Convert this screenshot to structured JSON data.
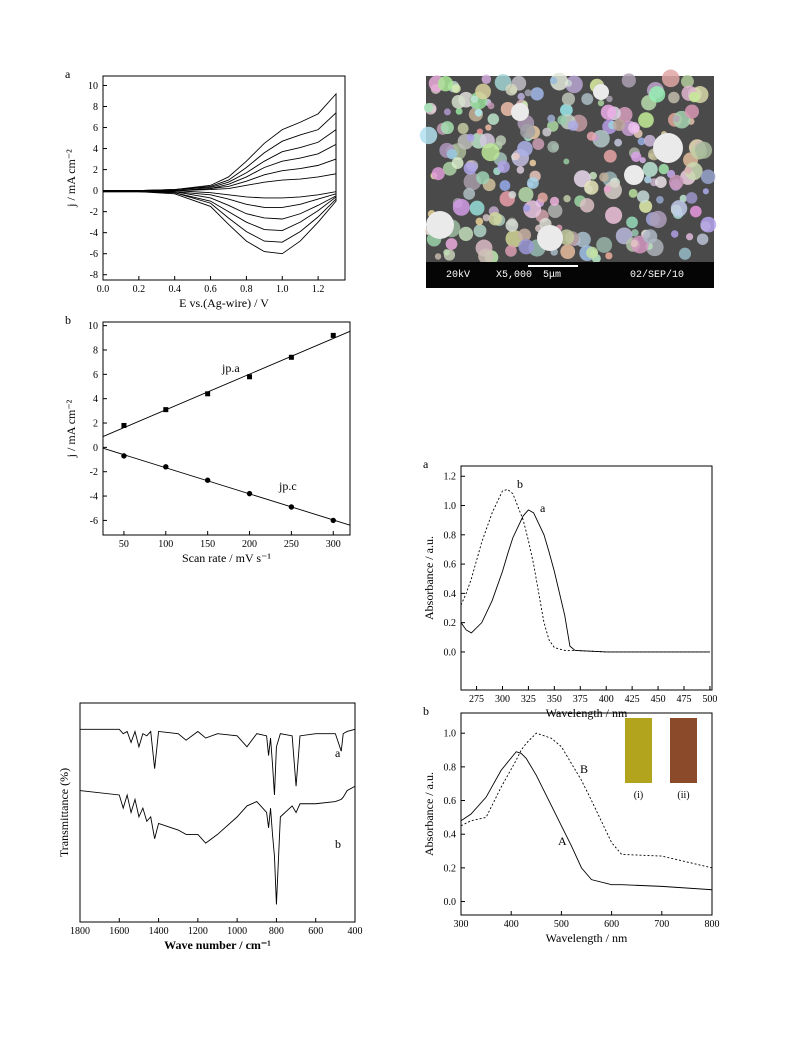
{
  "chart_data": [
    {
      "type": "line",
      "panel": "a",
      "x_label": "E vs.(Ag-wire) / V",
      "y_label": "j / mA cm⁻²",
      "xlim": [
        0,
        1.35
      ],
      "ylim": [
        -8.5,
        10.9
      ],
      "xticks": [
        {
          "value": 0,
          "label": "0.0"
        },
        0.2,
        0.4,
        0.6,
        0.8,
        {
          "value": 1,
          "label": "1.0"
        },
        1.2
      ],
      "yticks": [
        -8,
        -6,
        -4,
        -2,
        0,
        2,
        4,
        6,
        8,
        10
      ],
      "x": [
        0,
        0.2,
        0.4,
        0.6,
        0.7,
        0.8,
        0.9,
        1.0,
        1.1,
        1.2,
        1.3,
        1.3,
        1.2,
        1.1,
        1.0,
        0.9,
        0.8,
        0.7,
        0.6,
        0.4,
        0.2,
        0
      ],
      "series": [
        {
          "color": "#000000",
          "values": [
            0,
            0,
            0.1,
            0.5,
            1.3,
            2.8,
            4.5,
            5.8,
            6.5,
            7.3,
            9.2,
            -1.0,
            -3.0,
            -4.8,
            -6.0,
            -5.8,
            -4.8,
            -3.2,
            -1.5,
            -0.3,
            -0.1,
            -0.1
          ]
        },
        {
          "color": "#000000",
          "values": [
            0,
            0,
            0.1,
            0.4,
            1.0,
            2.2,
            3.6,
            4.7,
            5.3,
            5.8,
            7.4,
            -0.8,
            -2.5,
            -3.9,
            -4.9,
            -4.8,
            -3.9,
            -2.6,
            -1.2,
            -0.2,
            -0.1,
            -0.1
          ]
        },
        {
          "color": "#000000",
          "values": [
            0,
            0,
            0.1,
            0.3,
            0.8,
            1.7,
            2.8,
            3.7,
            4.1,
            4.6,
            5.8,
            -0.6,
            -1.9,
            -3.0,
            -3.8,
            -3.7,
            -3.0,
            -2.0,
            -1.0,
            -0.2,
            -0.1,
            -0.1
          ]
        },
        {
          "color": "#000000",
          "values": [
            0,
            0,
            0,
            0.2,
            0.6,
            1.3,
            2.2,
            2.8,
            3.1,
            3.5,
            4.4,
            -0.5,
            -1.4,
            -2.2,
            -2.7,
            -2.6,
            -2.2,
            -1.4,
            -0.7,
            -0.1,
            -0.1,
            -0.1
          ]
        },
        {
          "color": "#000000",
          "values": [
            0,
            0,
            0,
            0.2,
            0.4,
            0.9,
            1.5,
            1.9,
            2.1,
            2.4,
            3.0,
            -0.3,
            -0.8,
            -1.3,
            -1.6,
            -1.6,
            -1.3,
            -0.8,
            -0.4,
            -0.1,
            0,
            0
          ]
        },
        {
          "color": "#000000",
          "values": [
            0,
            0,
            0,
            0.1,
            0.2,
            0.5,
            0.8,
            1.0,
            1.1,
            1.3,
            1.6,
            -0.1,
            -0.4,
            -0.6,
            -0.7,
            -0.7,
            -0.6,
            -0.4,
            -0.2,
            0,
            0,
            0
          ]
        }
      ]
    },
    {
      "type": "scatter",
      "panel": "b",
      "x_label": "Scan rate / mV s⁻¹",
      "y_label": "j / mA cm⁻²",
      "fit": true,
      "xlim": [
        25,
        320
      ],
      "ylim": [
        -7.2,
        10.3
      ],
      "xticks": [
        50,
        100,
        150,
        200,
        250,
        300
      ],
      "yticks": [
        -6,
        -4,
        -2,
        0,
        2,
        4,
        6,
        8,
        10
      ],
      "x": [
        50,
        100,
        150,
        200,
        250,
        300
      ],
      "series": [
        {
          "name": "jp.a",
          "marker": "square",
          "color": "#000000",
          "values": [
            1.8,
            3.1,
            4.4,
            5.8,
            7.4,
            9.2
          ]
        },
        {
          "name": "jp.c",
          "marker": "circle",
          "color": "#000000",
          "values": [
            -0.7,
            -1.6,
            -2.7,
            -3.8,
            -4.9,
            -6.0
          ]
        }
      ]
    },
    {
      "type": "line",
      "panel": "a",
      "x_label": "Wavelength / nm",
      "y_label": "Absorbance / a.u.",
      "xlim": [
        260,
        502
      ],
      "ylim": [
        -0.26,
        1.27
      ],
      "xticks": [
        275,
        300,
        325,
        350,
        375,
        400,
        425,
        450,
        475,
        500
      ],
      "yticks": [
        {
          "value": 0,
          "label": "0.0"
        },
        0.2,
        0.4,
        0.6,
        0.8,
        {
          "value": 1,
          "label": "1.0"
        },
        1.2
      ],
      "x": [
        260,
        265,
        270,
        280,
        290,
        300,
        305,
        310,
        320,
        325,
        330,
        340,
        345,
        350,
        360,
        365,
        370,
        400,
        450,
        500
      ],
      "series": [
        {
          "name": "a",
          "color": "#000000",
          "dash": false,
          "values": [
            0.2,
            0.15,
            0.13,
            0.2,
            0.35,
            0.55,
            0.67,
            0.78,
            0.93,
            0.97,
            0.95,
            0.8,
            0.68,
            0.55,
            0.25,
            0.04,
            0.01,
            0,
            0,
            0
          ]
        },
        {
          "name": "b",
          "color": "#000000",
          "dash": true,
          "values": [
            0.32,
            0.4,
            0.5,
            0.75,
            0.95,
            1.1,
            1.11,
            1.08,
            0.9,
            0.76,
            0.6,
            0.2,
            0.08,
            0.03,
            0.01,
            0.01,
            0.01,
            0,
            0,
            0
          ]
        }
      ]
    },
    {
      "type": "line",
      "panel": "b",
      "x_label": "Wavelength / nm",
      "y_label": "Absorbance / a.u.",
      "xlim": [
        300,
        800
      ],
      "ylim": [
        -0.08,
        1.12
      ],
      "xticks": [
        300,
        400,
        500,
        600,
        700,
        800
      ],
      "yticks": [
        {
          "value": 0,
          "label": "0.0"
        },
        0.2,
        0.4,
        0.6,
        0.8,
        {
          "value": 1,
          "label": "1.0"
        }
      ],
      "x": [
        300,
        320,
        350,
        380,
        410,
        420,
        430,
        450,
        480,
        500,
        520,
        540,
        560,
        600,
        620,
        700,
        800
      ],
      "series": [
        {
          "name": "A",
          "color": "#000000",
          "dash": false,
          "values": [
            0.48,
            0.52,
            0.62,
            0.78,
            0.89,
            0.88,
            0.85,
            0.75,
            0.57,
            0.45,
            0.33,
            0.2,
            0.13,
            0.1,
            0.1,
            0.09,
            0.07
          ]
        },
        {
          "name": "B",
          "color": "#000000",
          "dash": true,
          "values": [
            0.45,
            0.48,
            0.5,
            0.68,
            0.84,
            0.9,
            0.94,
            1.0,
            0.97,
            0.92,
            0.82,
            0.72,
            0.6,
            0.35,
            0.28,
            0.27,
            0.2
          ]
        }
      ],
      "insets": [
        {
          "label": "(i)",
          "color": "#b3a41e"
        },
        {
          "label": "(ii)",
          "color": "#8b4a2a"
        }
      ]
    },
    {
      "type": "line",
      "x_label": "Wave number / cm⁻¹",
      "y_label": "Transmittance (%)",
      "xlim": [
        1800,
        400
      ],
      "ylim": [
        0,
        100
      ],
      "xticks": [
        1800,
        1600,
        1400,
        1200,
        1000,
        800,
        600,
        400
      ],
      "x": [
        1800,
        1600,
        1580,
        1560,
        1540,
        1520,
        1500,
        1480,
        1460,
        1440,
        1420,
        1400,
        1300,
        1260,
        1200,
        1160,
        1100,
        1000,
        950,
        900,
        850,
        840,
        830,
        820,
        810,
        800,
        780,
        720,
        700,
        680,
        600,
        500,
        470,
        460,
        440,
        400
      ],
      "series": [
        {
          "name": "a",
          "color": "#000000",
          "values": [
            88,
            88,
            86,
            87,
            82,
            87,
            80,
            86,
            85,
            87,
            70,
            87,
            86,
            83,
            87,
            84,
            86,
            85,
            80,
            86,
            85,
            76,
            84,
            72,
            58,
            80,
            86,
            85,
            62,
            85,
            86,
            86,
            78,
            86,
            87,
            88
          ]
        },
        {
          "name": "b",
          "color": "#000000",
          "values": [
            60,
            58,
            52,
            58,
            50,
            56,
            48,
            52,
            46,
            48,
            38,
            45,
            42,
            40,
            40,
            36,
            40,
            48,
            53,
            55,
            50,
            43,
            52,
            40,
            30,
            8,
            48,
            53,
            50,
            54,
            54,
            55,
            56,
            57,
            60,
            62
          ]
        }
      ]
    }
  ],
  "sem_image": {
    "voltage": "20kV",
    "magnification": "X5,000",
    "scale": "5μm",
    "date": "02/SEP/10"
  }
}
